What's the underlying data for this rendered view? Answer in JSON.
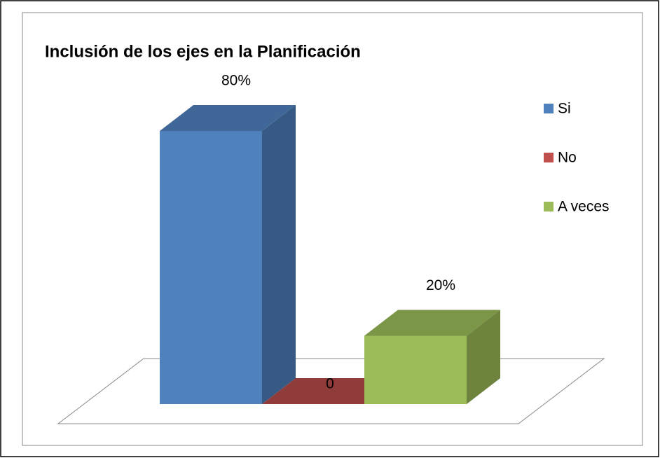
{
  "chart_data": {
    "type": "bar3d",
    "title": "Inclusión de los ejes en la Planificación",
    "categories": [
      "Si",
      "No",
      "A veces"
    ],
    "values": [
      80,
      0,
      20
    ],
    "value_labels": [
      "80%",
      "0",
      "20%"
    ],
    "colors": [
      "#4f81bd",
      "#c0504d",
      "#9bbb59"
    ],
    "legend": "right"
  }
}
